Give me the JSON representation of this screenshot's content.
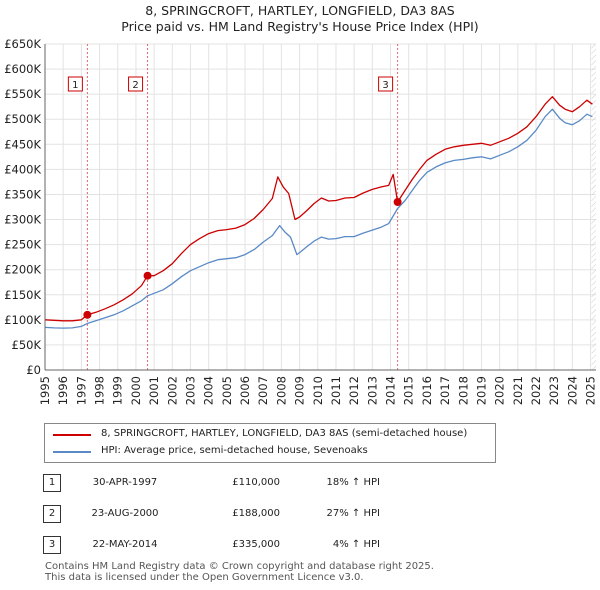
{
  "chart_data": {
    "type": "line",
    "title": "8, SPRINGCROFT, HARTLEY, LONGFIELD, DA3 8AS",
    "subtitle": "Price paid vs. HM Land Registry's House Price Index (HPI)",
    "xlim": [
      1995,
      2025.3
    ],
    "ylim": [
      0,
      650000
    ],
    "x_ticks": [
      "1995",
      "1996",
      "1997",
      "1998",
      "1999",
      "2000",
      "2001",
      "2002",
      "2003",
      "2004",
      "2005",
      "2006",
      "2007",
      "2008",
      "2009",
      "2010",
      "2011",
      "2012",
      "2013",
      "2014",
      "2015",
      "2016",
      "2017",
      "2018",
      "2019",
      "2020",
      "2021",
      "2022",
      "2023",
      "2024",
      "2025"
    ],
    "y_ticks": [
      {
        "v": 0,
        "label": "£0"
      },
      {
        "v": 50000,
        "label": "£50K"
      },
      {
        "v": 100000,
        "label": "£100K"
      },
      {
        "v": 150000,
        "label": "£150K"
      },
      {
        "v": 200000,
        "label": "£200K"
      },
      {
        "v": 250000,
        "label": "£250K"
      },
      {
        "v": 300000,
        "label": "£300K"
      },
      {
        "v": 350000,
        "label": "£350K"
      },
      {
        "v": 400000,
        "label": "£400K"
      },
      {
        "v": 450000,
        "label": "£450K"
      },
      {
        "v": 500000,
        "label": "£500K"
      },
      {
        "v": 550000,
        "label": "£550K"
      },
      {
        "v": 600000,
        "label": "£600K"
      },
      {
        "v": 650000,
        "label": "£650K"
      }
    ],
    "series": [
      {
        "name": "8, SPRINGCROFT, HARTLEY, LONGFIELD, DA3 8AS (semi-detached house)",
        "color": "#cc0000",
        "points": [
          [
            1995,
            100000
          ],
          [
            1995.5,
            99000
          ],
          [
            1996,
            98000
          ],
          [
            1996.5,
            98000
          ],
          [
            1997,
            100000
          ],
          [
            1997.33,
            110000
          ],
          [
            1997.8,
            115000
          ],
          [
            1998.3,
            122000
          ],
          [
            1998.8,
            130000
          ],
          [
            1999.3,
            140000
          ],
          [
            1999.8,
            152000
          ],
          [
            2000.3,
            168000
          ],
          [
            2000.64,
            188000
          ],
          [
            2001,
            188000
          ],
          [
            2001.5,
            198000
          ],
          [
            2002,
            212000
          ],
          [
            2002.5,
            232000
          ],
          [
            2003,
            250000
          ],
          [
            2003.5,
            262000
          ],
          [
            2004,
            272000
          ],
          [
            2004.5,
            278000
          ],
          [
            2005,
            280000
          ],
          [
            2005.5,
            283000
          ],
          [
            2006,
            290000
          ],
          [
            2006.5,
            302000
          ],
          [
            2007,
            320000
          ],
          [
            2007.5,
            342000
          ],
          [
            2007.8,
            385000
          ],
          [
            2008.1,
            365000
          ],
          [
            2008.4,
            352000
          ],
          [
            2008.75,
            300000
          ],
          [
            2009,
            305000
          ],
          [
            2009.4,
            318000
          ],
          [
            2009.8,
            332000
          ],
          [
            2010.2,
            343000
          ],
          [
            2010.6,
            337000
          ],
          [
            2011,
            338000
          ],
          [
            2011.5,
            343000
          ],
          [
            2012,
            344000
          ],
          [
            2012.5,
            353000
          ],
          [
            2013,
            360000
          ],
          [
            2013.5,
            365000
          ],
          [
            2013.9,
            368000
          ],
          [
            2014.15,
            390000
          ],
          [
            2014.39,
            335000
          ],
          [
            2014.8,
            358000
          ],
          [
            2015.2,
            380000
          ],
          [
            2015.6,
            400000
          ],
          [
            2016,
            418000
          ],
          [
            2016.5,
            430000
          ],
          [
            2017,
            440000
          ],
          [
            2017.5,
            445000
          ],
          [
            2018,
            448000
          ],
          [
            2018.5,
            450000
          ],
          [
            2019,
            452000
          ],
          [
            2019.5,
            448000
          ],
          [
            2020,
            455000
          ],
          [
            2020.5,
            462000
          ],
          [
            2021,
            472000
          ],
          [
            2021.5,
            485000
          ],
          [
            2022,
            505000
          ],
          [
            2022.5,
            530000
          ],
          [
            2022.9,
            545000
          ],
          [
            2023.3,
            528000
          ],
          [
            2023.6,
            520000
          ],
          [
            2024,
            515000
          ],
          [
            2024.4,
            525000
          ],
          [
            2024.8,
            538000
          ],
          [
            2025.1,
            530000
          ]
        ]
      },
      {
        "name": "HPI: Average price, semi-detached house, Sevenoaks",
        "color": "#5a8ac6",
        "points": [
          [
            1995,
            85000
          ],
          [
            1995.5,
            84000
          ],
          [
            1996,
            83500
          ],
          [
            1996.5,
            84000
          ],
          [
            1997,
            87000
          ],
          [
            1997.33,
            93000
          ],
          [
            1997.8,
            98000
          ],
          [
            1998.3,
            104000
          ],
          [
            1998.8,
            110000
          ],
          [
            1999.3,
            118000
          ],
          [
            1999.8,
            128000
          ],
          [
            2000.3,
            138000
          ],
          [
            2000.64,
            148000
          ],
          [
            2001,
            153000
          ],
          [
            2001.5,
            160000
          ],
          [
            2002,
            172000
          ],
          [
            2002.5,
            186000
          ],
          [
            2003,
            198000
          ],
          [
            2003.5,
            206000
          ],
          [
            2004,
            214000
          ],
          [
            2004.5,
            220000
          ],
          [
            2005,
            222000
          ],
          [
            2005.5,
            224000
          ],
          [
            2006,
            230000
          ],
          [
            2006.5,
            240000
          ],
          [
            2007,
            255000
          ],
          [
            2007.5,
            268000
          ],
          [
            2007.9,
            288000
          ],
          [
            2008.2,
            275000
          ],
          [
            2008.5,
            265000
          ],
          [
            2008.85,
            230000
          ],
          [
            2009,
            234000
          ],
          [
            2009.4,
            246000
          ],
          [
            2009.8,
            257000
          ],
          [
            2010.2,
            265000
          ],
          [
            2010.6,
            261000
          ],
          [
            2011,
            262000
          ],
          [
            2011.5,
            266000
          ],
          [
            2012,
            266000
          ],
          [
            2012.5,
            273000
          ],
          [
            2013,
            279000
          ],
          [
            2013.5,
            285000
          ],
          [
            2013.9,
            292000
          ],
          [
            2014.39,
            322000
          ],
          [
            2014.8,
            338000
          ],
          [
            2015.2,
            358000
          ],
          [
            2015.6,
            378000
          ],
          [
            2016,
            394000
          ],
          [
            2016.5,
            405000
          ],
          [
            2017,
            413000
          ],
          [
            2017.5,
            418000
          ],
          [
            2018,
            420000
          ],
          [
            2018.5,
            423000
          ],
          [
            2019,
            425000
          ],
          [
            2019.5,
            421000
          ],
          [
            2020,
            428000
          ],
          [
            2020.5,
            435000
          ],
          [
            2021,
            445000
          ],
          [
            2021.5,
            458000
          ],
          [
            2022,
            478000
          ],
          [
            2022.5,
            505000
          ],
          [
            2022.9,
            520000
          ],
          [
            2023.3,
            502000
          ],
          [
            2023.6,
            493000
          ],
          [
            2024,
            489000
          ],
          [
            2024.4,
            497000
          ],
          [
            2024.8,
            510000
          ],
          [
            2025.1,
            505000
          ]
        ]
      }
    ],
    "sales": [
      {
        "label": "1",
        "x": 1997.33,
        "y": 110000
      },
      {
        "label": "2",
        "x": 2000.64,
        "y": 188000
      },
      {
        "label": "3",
        "x": 2014.39,
        "y": 335000
      }
    ]
  },
  "legend": [
    {
      "label": "8, SPRINGCROFT, HARTLEY, LONGFIELD, DA3 8AS (semi-detached house)",
      "color": "#cc0000"
    },
    {
      "label": "HPI: Average price, semi-detached house, Sevenoaks",
      "color": "#5a8ac6"
    }
  ],
  "sales_table": [
    {
      "num": "1",
      "date": "30-APR-1997",
      "price": "£110,000",
      "hpi": "18% ↑ HPI"
    },
    {
      "num": "2",
      "date": "23-AUG-2000",
      "price": "£188,000",
      "hpi": "27% ↑ HPI"
    },
    {
      "num": "3",
      "date": "22-MAY-2014",
      "price": "£335,000",
      "hpi": "4% ↑ HPI"
    }
  ],
  "footer": {
    "line1": "Contains HM Land Registry data © Crown copyright and database right 2025.",
    "line2": "This data is licensed under the Open Government Licence v3.0."
  }
}
